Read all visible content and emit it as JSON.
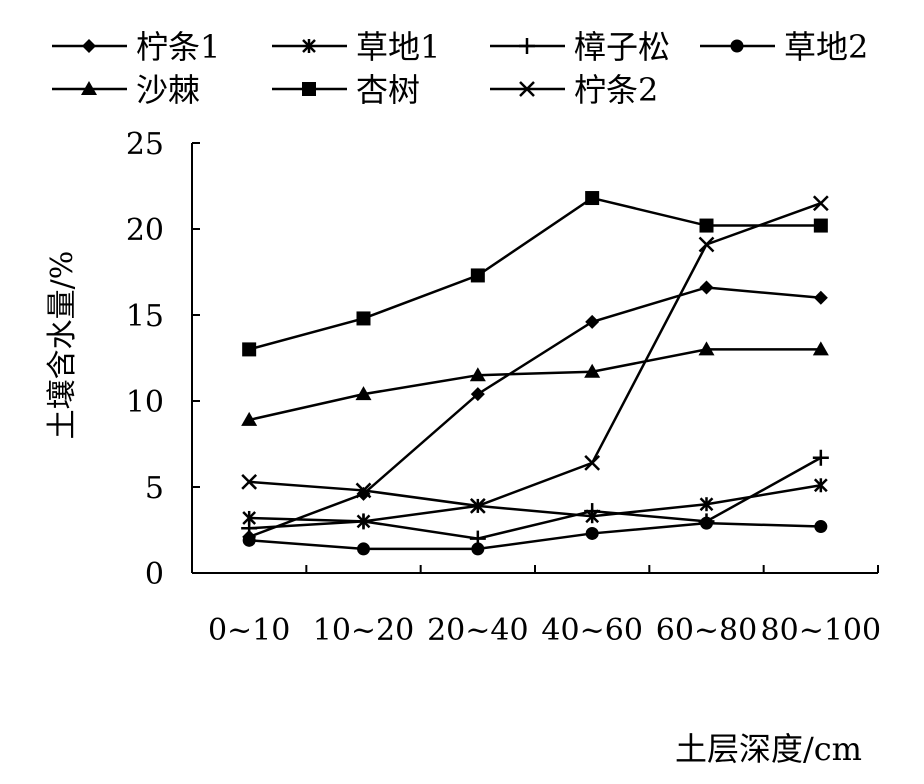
{
  "chart_data": {
    "type": "line",
    "categories": [
      "0~10",
      "10~20",
      "20~40",
      "40~60",
      "60~80",
      "80~100"
    ],
    "xlabel": "土层深度/cm",
    "ylabel": "土壤含水量/%",
    "ylim": [
      0,
      25
    ],
    "yticks": [
      "0",
      "5",
      "10",
      "15",
      "20",
      "25"
    ],
    "grid": false,
    "legend_position": "top",
    "series": [
      {
        "name": "柠条1",
        "marker": "diamond",
        "values": [
          2.1,
          4.6,
          10.4,
          14.6,
          16.6,
          16.0
        ]
      },
      {
        "name": "草地1",
        "marker": "asterisk",
        "values": [
          3.2,
          3.0,
          3.9,
          3.3,
          4.0,
          5.1
        ]
      },
      {
        "name": "樟子松",
        "marker": "plus",
        "values": [
          2.6,
          3.0,
          2.0,
          3.6,
          3.0,
          6.7
        ]
      },
      {
        "name": "草地2",
        "marker": "circle",
        "values": [
          1.9,
          1.4,
          1.4,
          2.3,
          2.9,
          2.7
        ]
      },
      {
        "name": "沙棘",
        "marker": "triangle",
        "values": [
          8.9,
          10.4,
          11.5,
          11.7,
          13.0,
          13.0
        ]
      },
      {
        "name": "杏树",
        "marker": "square",
        "values": [
          13.0,
          14.8,
          17.3,
          21.8,
          20.2,
          20.2
        ]
      },
      {
        "name": "柠条2",
        "marker": "x",
        "values": [
          5.3,
          4.8,
          3.9,
          6.4,
          19.1,
          21.5
        ]
      }
    ]
  }
}
